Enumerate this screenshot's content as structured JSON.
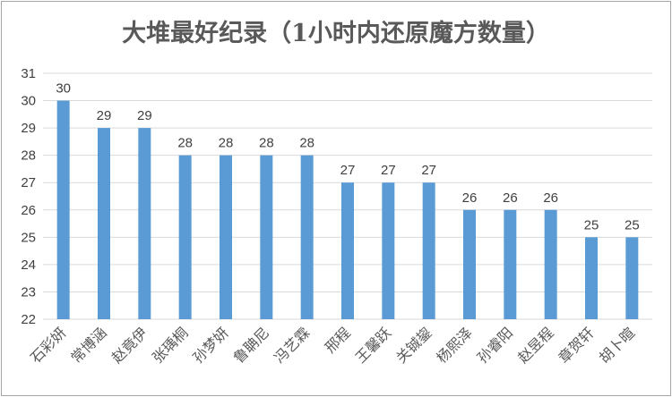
{
  "chart_data": {
    "type": "bar",
    "title": "大堆最好纪录（1小时内还原魔方数量）",
    "xlabel": "",
    "ylabel": "",
    "categories": [
      "石彩妍",
      "常博涵",
      "赵竟伊",
      "张瑀桐",
      "孙梦妍",
      "鲁聃尼",
      "冯艺霖",
      "邢程",
      "王馨跃",
      "关铖鋆",
      "杨熙泽",
      "孙睿阳",
      "赵昱程",
      "章贺轩",
      "胡卜暄"
    ],
    "values": [
      30,
      29,
      29,
      28,
      28,
      28,
      28,
      27,
      27,
      27,
      26,
      26,
      26,
      25,
      25
    ],
    "ylim": [
      22,
      31
    ],
    "yticks": [
      22,
      23,
      24,
      25,
      26,
      27,
      28,
      29,
      30,
      31
    ],
    "grid": true,
    "bar_color": "#5b9bd5",
    "grid_color": "#d9d9d9"
  }
}
